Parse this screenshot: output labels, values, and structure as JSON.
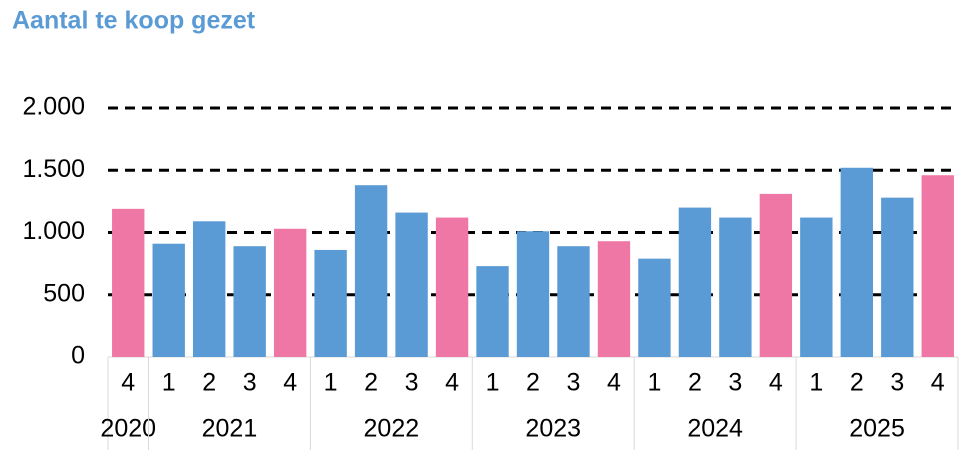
{
  "chart_data": {
    "type": "bar",
    "title": "Aantal te koop gezet",
    "groups": [
      {
        "label": "2020",
        "categories": [
          "4"
        ]
      },
      {
        "label": "2021",
        "categories": [
          "1",
          "2",
          "3",
          "4"
        ]
      },
      {
        "label": "2022",
        "categories": [
          "1",
          "2",
          "3",
          "4"
        ]
      },
      {
        "label": "2023",
        "categories": [
          "1",
          "2",
          "3",
          "4"
        ]
      },
      {
        "label": "2024",
        "categories": [
          "1",
          "2",
          "3",
          "4"
        ]
      },
      {
        "label": "2025",
        "categories": [
          "1",
          "2",
          "3",
          "4"
        ]
      }
    ],
    "values": [
      1190,
      910,
      1090,
      890,
      1030,
      860,
      1380,
      1160,
      1120,
      730,
      1010,
      890,
      930,
      790,
      1200,
      1120,
      1310,
      1120,
      1520,
      1280,
      1460
    ],
    "colors": [
      "#ef77a5",
      "#5b9bd5",
      "#5b9bd5",
      "#5b9bd5",
      "#ef77a5",
      "#5b9bd5",
      "#5b9bd5",
      "#5b9bd5",
      "#ef77a5",
      "#5b9bd5",
      "#5b9bd5",
      "#5b9bd5",
      "#ef77a5",
      "#5b9bd5",
      "#5b9bd5",
      "#5b9bd5",
      "#ef77a5",
      "#5b9bd5",
      "#5b9bd5",
      "#5b9bd5",
      "#ef77a5"
    ],
    "ylim": [
      0,
      2000
    ],
    "yticks": [
      0,
      500,
      {
        "value": 1000,
        "label": "1.000"
      },
      {
        "value": 1500,
        "label": "1.500"
      },
      {
        "value": 2000,
        "label": "2.000"
      }
    ],
    "grid": true
  }
}
